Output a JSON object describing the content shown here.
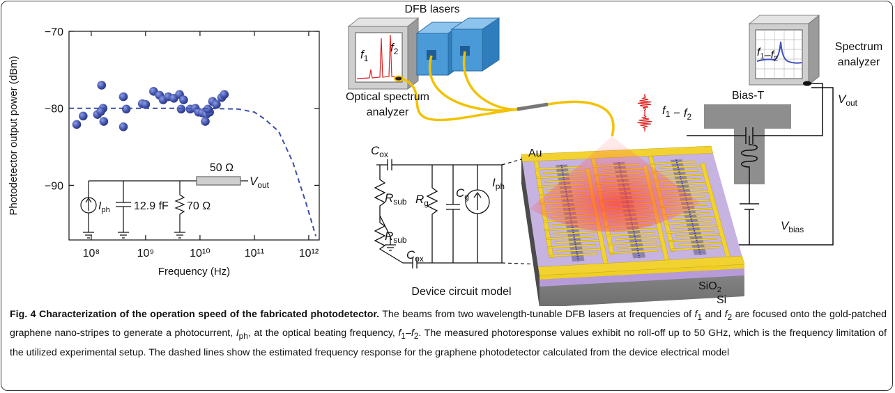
{
  "chart_data": {
    "type": "scatter",
    "x_label": "Frequency (Hz)",
    "y_label": "Photodetector output power (dBm)",
    "xscale": "log",
    "xlim": [
      39000000.0,
      1560000000000.0
    ],
    "xticks": [
      {
        "value": 100000000.0,
        "label": "10⁸"
      },
      {
        "value": 1000000000.0,
        "label": "10⁹"
      },
      {
        "value": 10000000000.0,
        "label": "10¹⁰"
      },
      {
        "value": 100000000000.0,
        "label": "10¹¹"
      },
      {
        "value": 1000000000000.0,
        "label": "10¹²"
      }
    ],
    "ylim": [
      -97.1,
      -70
    ],
    "yticks": [
      {
        "value": -70,
        "label": "−70"
      },
      {
        "value": -80,
        "label": "−80"
      },
      {
        "value": -90,
        "label": "−90"
      }
    ],
    "series": [
      {
        "color": "#4455b0",
        "marker": "dot",
        "x": [
          54000000.0,
          71000000.0,
          130000000.0,
          155000000.0,
          165000000.0,
          170000000.0,
          150000000.0,
          390000000.0,
          390000000.0,
          440000000.0,
          870000000.0,
          1000000000.0,
          1400000000.0,
          1800000000.0,
          2100000000.0,
          2600000000.0,
          3300000000.0,
          4200000000.0,
          5000000000.0,
          4500000000.0,
          6600000000.0,
          8200000000.0,
          9400000000.0,
          11000000000.0,
          13000000000.0,
          15000000000.0,
          12500000000.0,
          14000000000.0,
          17000000000.0,
          20000000000.0,
          25000000000.0,
          28000000000.0
        ],
        "values": [
          -82.1,
          -81.0,
          -80.8,
          -77.0,
          -80.0,
          -81.7,
          -80.4,
          -78.5,
          -82.4,
          -80.1,
          -79.4,
          -79.5,
          -77.8,
          -78.3,
          -78.9,
          -78.5,
          -78.7,
          -78.2,
          -78.9,
          -80.1,
          -80.1,
          -80.0,
          -80.5,
          -80.6,
          -80.8,
          -80.5,
          -81.7,
          -80.1,
          -79.1,
          -79.5,
          -78.6,
          -78.2
        ]
      },
      {
        "color": "#3a4fa8",
        "style": "dashed",
        "x": [
          39000000.0,
          10000000000.0,
          50000000000.0,
          100000000000.0,
          155000000000.0,
          280000000000.0,
          510000000000.0,
          910000000000.0,
          1350000000000.0
        ],
        "values": [
          -80,
          -80,
          -80.1,
          -80.5,
          -81.4,
          -83,
          -87,
          -92.5,
          -96.6
        ]
      }
    ]
  },
  "inset_circuit": {
    "r_series": "50 Ω",
    "vout": [
      {
        "var": "V",
        "sub": "out"
      }
    ],
    "iph": [
      {
        "var": "I",
        "sub": "ph"
      }
    ],
    "capacitance": "12.9 fF",
    "r_shunt": "70 Ω"
  },
  "diagram": {
    "dfb_lasers": "DFB lasers",
    "osa_label": [
      "Optical spectrum",
      "analyzer"
    ],
    "osa_f1": [
      {
        "var": "f",
        "sub": "1"
      }
    ],
    "osa_f2": [
      {
        "var": "f",
        "sub": "2"
      }
    ],
    "sa_label": [
      "Spectrum",
      "analyzer"
    ],
    "sa_screen": [
      {
        "var": "f",
        "sub": "1"
      },
      "–",
      {
        "var": "f",
        "sub": "2"
      }
    ],
    "vout": [
      {
        "var": "V",
        "sub": "out"
      }
    ],
    "beat": [
      {
        "var": "f",
        "sub": "1"
      },
      " − ",
      {
        "var": "f",
        "sub": "2"
      }
    ],
    "bias_t": "Bias-T",
    "vbias": [
      {
        "var": "V",
        "sub": "bias"
      }
    ],
    "au": "Au",
    "sio2": [
      {
        "text": "SiO",
        "sub": "2"
      }
    ],
    "si": "Si",
    "circuit": {
      "cox_top": [
        {
          "var": "C",
          "sub": "ox"
        }
      ],
      "rsub_top": [
        {
          "var": "R",
          "sub": "sub"
        }
      ],
      "rg": [
        {
          "var": "R",
          "sub": "g"
        }
      ],
      "cg": [
        {
          "var": "C",
          "sub": "g"
        }
      ],
      "iph": [
        {
          "var": "I",
          "sub": "ph"
        }
      ],
      "rsub_bottom": [
        {
          "var": "R",
          "sub": "sub"
        }
      ],
      "cox_bottom": [
        {
          "var": "C",
          "sub": "ox"
        }
      ]
    },
    "circuit_title": "Device circuit model"
  },
  "caption": {
    "title": "Fig. 4 Characterization of the operation speed of the fabricated photodetector.",
    "body": [
      " The beams from two wavelength-tunable DFB lasers at frequencies of ",
      {
        "var": "f",
        "sub": "1"
      },
      " and ",
      {
        "var": "f",
        "sub": "2"
      },
      " are focused onto the gold-patched graphene nano-stripes to generate a photocurrent, ",
      {
        "var": "I",
        "sub": "ph"
      },
      ", at the optical beating frequency, ",
      {
        "var": "f",
        "sub": "1"
      },
      "–",
      {
        "var": "f",
        "sub": "2"
      },
      ". The measured photoresponse values exhibit no roll-off up to 50 GHz, which is the frequency limitation of the utilized experimental setup. The dashed lines show the estimated frequency response for the graphene photodetector calculated from the device electrical model"
    ]
  }
}
